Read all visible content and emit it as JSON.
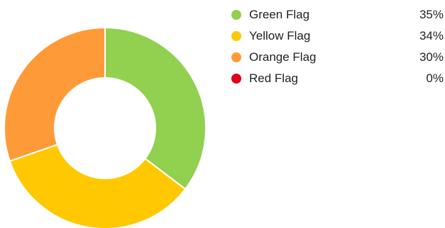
{
  "chart_data": {
    "type": "pie",
    "donut": true,
    "legend_position": "right",
    "categories": [
      "Green Flag",
      "Yellow Flag",
      "Orange Flag",
      "Red Flag"
    ],
    "values": [
      35,
      34,
      30,
      0
    ],
    "percent_labels": [
      "35%",
      "34%",
      "30%",
      "0%"
    ],
    "colors": [
      "#92d050",
      "#ffc800",
      "#ff9a38",
      "#e0001b"
    ]
  }
}
